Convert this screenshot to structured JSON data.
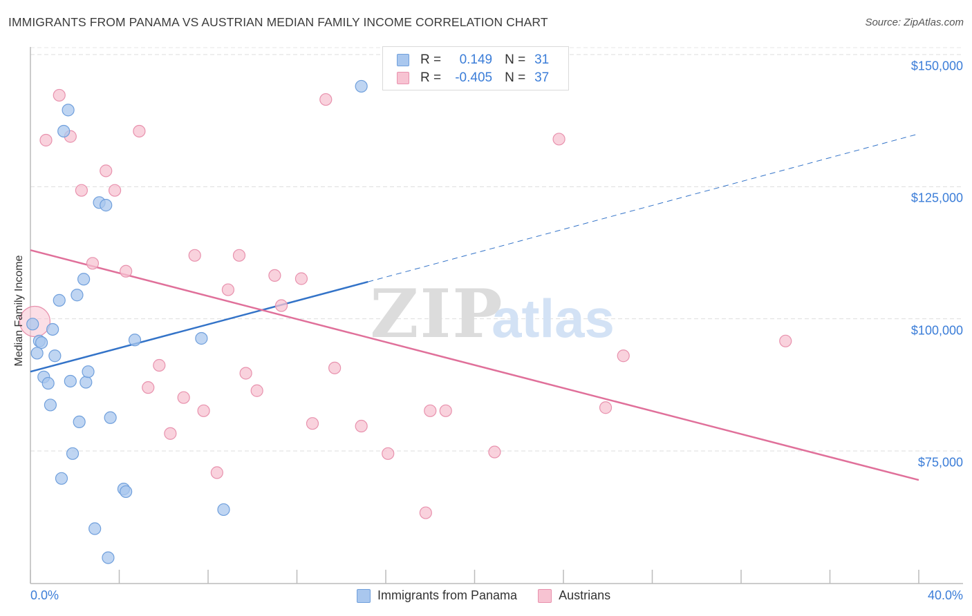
{
  "chart_data": {
    "type": "scatter",
    "title": "IMMIGRANTS FROM PANAMA VS AUSTRIAN MEDIAN FAMILY INCOME CORRELATION CHART",
    "source": "Source: ZipAtlas.com",
    "xlabel": "",
    "ylabel": "Median Family Income",
    "xlim": [
      0,
      40
    ],
    "ylim": [
      50000,
      155000
    ],
    "x_tick_labels": [
      {
        "value": 0,
        "label": "0.0%"
      },
      {
        "value": 40,
        "label": "40.0%"
      }
    ],
    "y_tick_labels": [
      {
        "value": 75000,
        "label": "$75,000"
      },
      {
        "value": 100000,
        "label": "$100,000"
      },
      {
        "value": 125000,
        "label": "$125,000"
      },
      {
        "value": 150000,
        "label": "$150,000"
      }
    ],
    "watermark": {
      "zip": "ZIP",
      "atlas": "atlas"
    },
    "legend": {
      "r_label": "R =",
      "n_label": "N =",
      "entries": [
        {
          "name": "Immigrants from Panama",
          "r": "0.149",
          "n": "31"
        },
        {
          "name": "Austrians",
          "r": "-0.405",
          "n": "37"
        }
      ]
    },
    "series": [
      {
        "name": "Immigrants from Panama",
        "color": "#a9c7ee",
        "stroke": "#6f9fdc",
        "line_color": "#3373c8",
        "trend": {
          "x0": 0,
          "y0": 90000,
          "x1": 15.2,
          "y1": 107000,
          "x_dash_end": 40,
          "y_dash_end": 135000
        },
        "points": [
          [
            14.9,
            144000
          ],
          [
            1.7,
            139500
          ],
          [
            1.5,
            135500
          ],
          [
            3.1,
            122000
          ],
          [
            3.4,
            121500
          ],
          [
            2.4,
            107500
          ],
          [
            2.1,
            104500
          ],
          [
            1.3,
            103500
          ],
          [
            0.1,
            99000
          ],
          [
            1.0,
            98000
          ],
          [
            0.4,
            95800
          ],
          [
            0.5,
            95500
          ],
          [
            4.7,
            96000
          ],
          [
            7.7,
            96300
          ],
          [
            0.3,
            93500
          ],
          [
            1.1,
            93000
          ],
          [
            0.6,
            89000
          ],
          [
            0.8,
            87800
          ],
          [
            1.8,
            88200
          ],
          [
            2.5,
            88000
          ],
          [
            2.6,
            90000
          ],
          [
            0.9,
            83700
          ],
          [
            2.2,
            80500
          ],
          [
            3.6,
            81300
          ],
          [
            1.9,
            74500
          ],
          [
            1.4,
            69800
          ],
          [
            4.2,
            67800
          ],
          [
            4.3,
            67300
          ],
          [
            8.7,
            63900
          ],
          [
            2.9,
            60300
          ],
          [
            3.5,
            54800
          ]
        ]
      },
      {
        "name": "Austrians",
        "color": "#f7c3d2",
        "stroke": "#e891ad",
        "line_color": "#e0709a",
        "trend": {
          "x0": 0,
          "y0": 113000,
          "x1": 40,
          "y1": 69500
        },
        "points": [
          [
            0.2,
            99500
          ],
          [
            1.3,
            142300
          ],
          [
            0.7,
            133800
          ],
          [
            1.8,
            134500
          ],
          [
            4.9,
            135500
          ],
          [
            13.3,
            141500
          ],
          [
            3.4,
            128000
          ],
          [
            2.3,
            124300
          ],
          [
            3.8,
            124300
          ],
          [
            23.8,
            134000
          ],
          [
            2.8,
            110500
          ],
          [
            4.3,
            109000
          ],
          [
            7.4,
            112000
          ],
          [
            9.4,
            112000
          ],
          [
            11.0,
            108200
          ],
          [
            12.2,
            107600
          ],
          [
            8.9,
            105500
          ],
          [
            11.3,
            102500
          ],
          [
            5.8,
            91200
          ],
          [
            9.7,
            89700
          ],
          [
            13.7,
            90700
          ],
          [
            26.7,
            93000
          ],
          [
            34.0,
            95800
          ],
          [
            5.3,
            87000
          ],
          [
            6.9,
            85100
          ],
          [
            10.2,
            86400
          ],
          [
            7.8,
            82600
          ],
          [
            12.7,
            80200
          ],
          [
            14.9,
            79700
          ],
          [
            18.0,
            82600
          ],
          [
            18.7,
            82600
          ],
          [
            25.9,
            83200
          ],
          [
            6.3,
            78300
          ],
          [
            16.1,
            74500
          ],
          [
            20.9,
            74800
          ],
          [
            8.4,
            70900
          ],
          [
            17.8,
            63300
          ]
        ]
      }
    ]
  }
}
